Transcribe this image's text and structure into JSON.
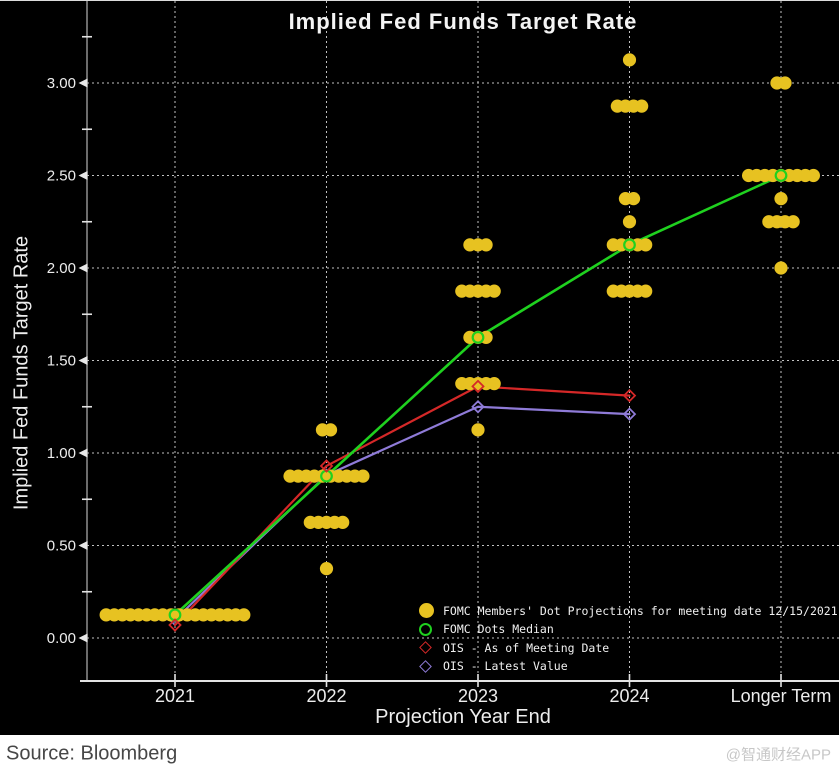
{
  "page": {
    "chart_background": "#000000",
    "footer_background": "#ffffff"
  },
  "chart_data": {
    "type": "scatter",
    "title": "Implied Fed Funds Target Rate",
    "xlabel": "Projection Year End",
    "ylabel": "Implied Fed Funds Target Rate",
    "x_categories": [
      "2021",
      "2022",
      "2023",
      "2024",
      "Longer Term"
    ],
    "y_ticks": [
      0.0,
      0.5,
      1.0,
      1.5,
      2.0,
      2.5,
      3.0
    ],
    "y_tick_labels": [
      "0.00",
      "0.50",
      "1.00",
      "1.50",
      "2.00",
      "2.50",
      "3.00"
    ],
    "y_minor_ticks": [
      0.25,
      0.75,
      1.25,
      1.75,
      2.25,
      2.75,
      3.25
    ],
    "ylim": [
      -0.23,
      3.44
    ],
    "grid": "dotted gridlines at every year and every 0.50 rate step",
    "legend_position": "inside bottom-right",
    "series": [
      {
        "name": "FOMC Members' Dot Projections for meeting date 12/15/2021",
        "type": "scatter",
        "marker": "filled-circle",
        "color": "#E7C221",
        "dot_groups": [
          {
            "year": "2021",
            "levels": [
              {
                "rate": 0.125,
                "count": 18
              }
            ]
          },
          {
            "year": "2022",
            "levels": [
              {
                "rate": 1.125,
                "count": 2
              },
              {
                "rate": 0.875,
                "count": 10
              },
              {
                "rate": 0.625,
                "count": 5
              },
              {
                "rate": 0.375,
                "count": 1
              }
            ]
          },
          {
            "year": "2023",
            "levels": [
              {
                "rate": 2.125,
                "count": 3
              },
              {
                "rate": 1.875,
                "count": 5
              },
              {
                "rate": 1.625,
                "count": 3
              },
              {
                "rate": 1.375,
                "count": 5
              },
              {
                "rate": 1.125,
                "count": 1
              }
            ]
          },
          {
            "year": "2024",
            "levels": [
              {
                "rate": 3.125,
                "count": 1
              },
              {
                "rate": 2.875,
                "count": 4
              },
              {
                "rate": 2.375,
                "count": 2
              },
              {
                "rate": 2.25,
                "count": 1
              },
              {
                "rate": 2.125,
                "count": 5
              },
              {
                "rate": 1.875,
                "count": 5
              }
            ]
          },
          {
            "year": "Longer Term",
            "levels": [
              {
                "rate": 3.0,
                "count": 2
              },
              {
                "rate": 2.5,
                "count": 9
              },
              {
                "rate": 2.375,
                "count": 1
              },
              {
                "rate": 2.25,
                "count": 4
              },
              {
                "rate": 2.0,
                "count": 1
              }
            ]
          }
        ]
      },
      {
        "name": "FOMC Dots Median",
        "type": "line",
        "marker": "open-circle",
        "color": "#1FD11F",
        "x": [
          "2021",
          "2022",
          "2023",
          "2024",
          "Longer Term"
        ],
        "values": [
          0.125,
          0.875,
          1.625,
          2.125,
          2.5
        ]
      },
      {
        "name": "OIS - As of Meeting Date",
        "type": "line",
        "marker": "open-diamond",
        "color": "#D52828",
        "x": [
          "2021",
          "2022",
          "2023",
          "2024"
        ],
        "values": [
          0.07,
          0.93,
          1.36,
          1.31
        ]
      },
      {
        "name": "OIS - Latest Value",
        "type": "line",
        "marker": "open-diamond",
        "color": "#8F7BD8",
        "x": [
          "2021",
          "2022",
          "2023",
          "2024"
        ],
        "values": [
          0.1,
          0.88,
          1.25,
          1.21
        ]
      }
    ]
  },
  "footer": {
    "source": "Source: Bloomberg",
    "watermark": "@智通财经APP"
  }
}
